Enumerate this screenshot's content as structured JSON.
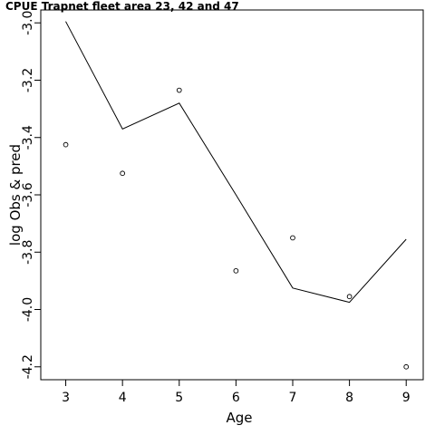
{
  "chart_data": {
    "type": "line",
    "title": "CPUE Trapnet fleet area 23, 42 and 47",
    "xlabel": "Age",
    "ylabel": "log Obs & pred",
    "x_ticks": [
      "3",
      "4",
      "5",
      "6",
      "7",
      "8",
      "9"
    ],
    "y_ticks": [
      "-3.0",
      "-3.2",
      "-3.4",
      "-3.6",
      "-3.8",
      "-4.0",
      "-4.2"
    ],
    "xlim": [
      2.56,
      9.3
    ],
    "ylim": [
      -4.245,
      -2.955
    ],
    "grid": false,
    "series": [
      {
        "type": "line",
        "x": [
          3,
          4,
          5,
          6,
          7,
          8,
          9
        ],
        "y": [
          -2.995,
          -3.37,
          -3.28,
          -3.6,
          -3.925,
          -3.975,
          -3.755
        ]
      },
      {
        "type": "scatter",
        "x": [
          3,
          4,
          5,
          6,
          7,
          8,
          9
        ],
        "y": [
          -3.425,
          -3.525,
          -3.235,
          -3.865,
          -3.75,
          -3.955,
          -4.2
        ]
      }
    ],
    "colors": {
      "line": "#000000",
      "points": "#000000"
    }
  }
}
